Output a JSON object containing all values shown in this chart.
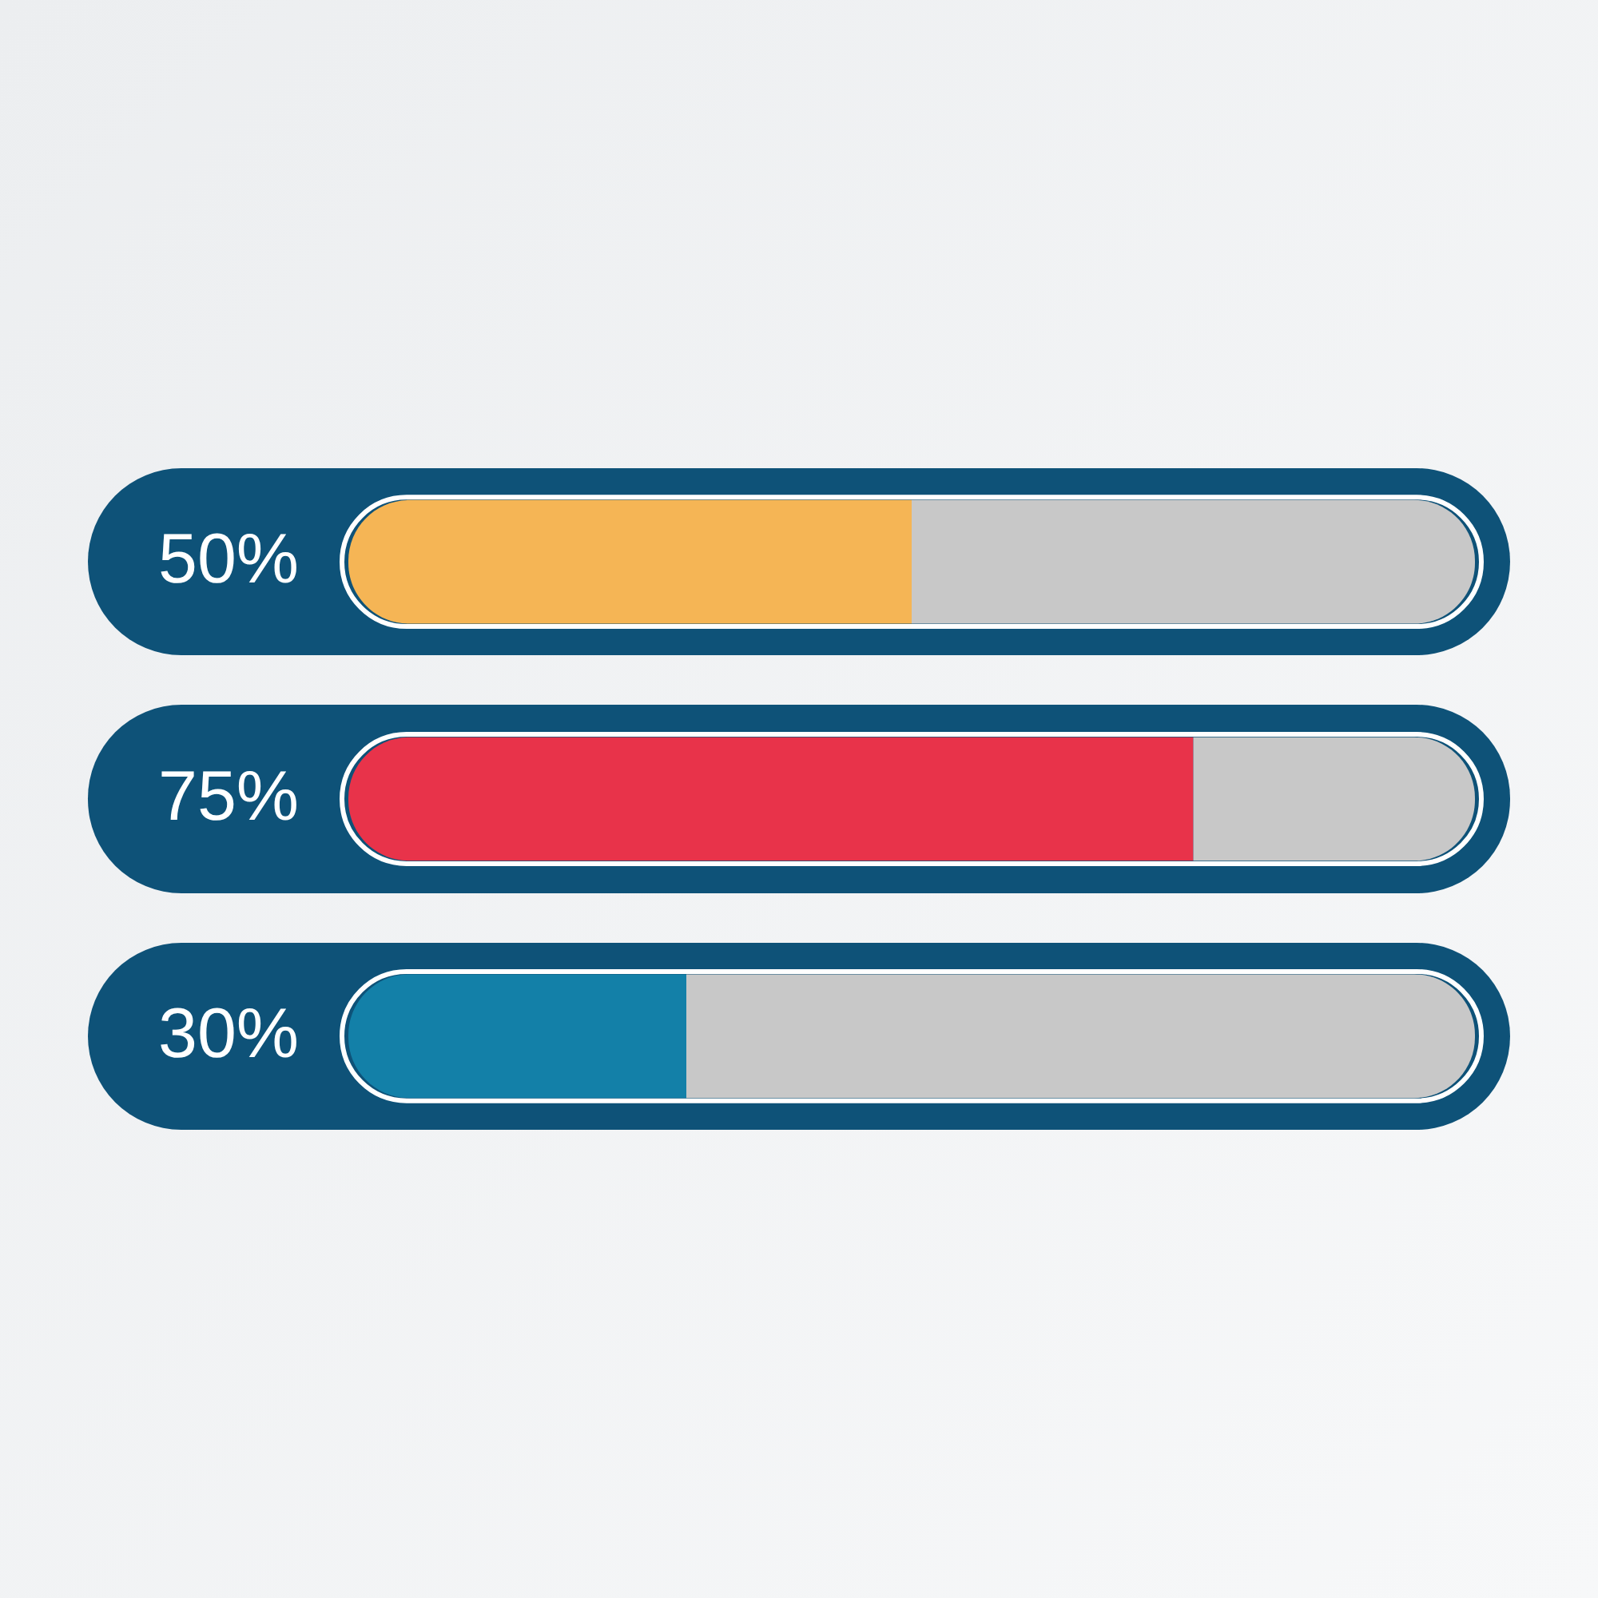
{
  "chart_data": {
    "type": "bar",
    "orientation": "horizontal",
    "stacked": true,
    "categories": [
      null,
      null,
      null
    ],
    "series": [
      {
        "colors": [
          "#f5b555",
          "#e8334a",
          "#1380a8"
        ],
        "values": [
          50,
          75,
          30
        ],
        "value_labels": [
          "50%",
          "75%",
          "30%"
        ]
      },
      {
        "color": "#c8c8c8",
        "values": [
          50,
          25,
          70
        ]
      }
    ],
    "tick_labels": false
  }
}
